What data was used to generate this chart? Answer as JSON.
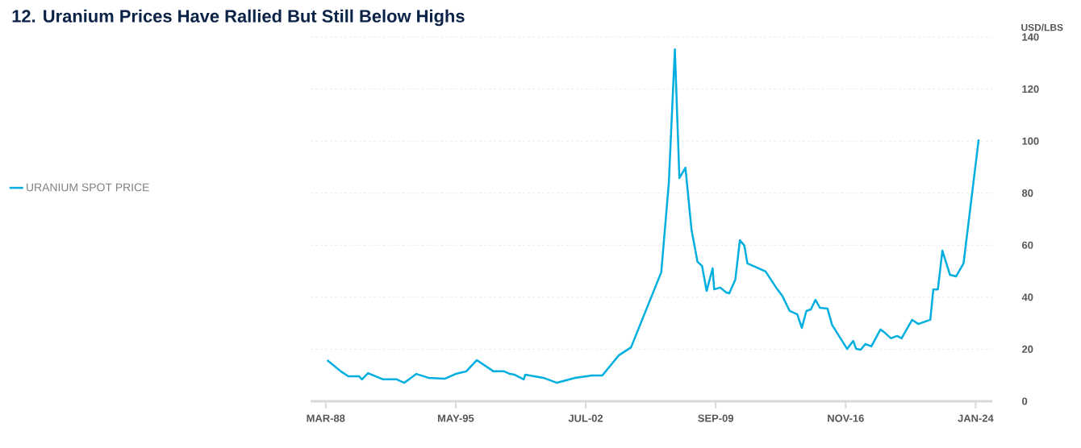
{
  "chart_data": {
    "type": "line",
    "title": "12. Uranium Prices Have Rallied But Still Below Highs",
    "ylabel": "USD/LBS",
    "x": [
      "1988-04",
      "1989-01",
      "1989-06",
      "1990-01",
      "1990-03",
      "1990-07",
      "1991-05",
      "1992-02",
      "1992-07",
      "1993-03",
      "1993-11",
      "1994-10",
      "1995-05",
      "1995-12",
      "1996-07",
      "1997-06",
      "1998-01",
      "1998-05",
      "1998-08",
      "1999-02",
      "1999-03",
      "2000-03",
      "2000-12",
      "2001-12",
      "2002-11",
      "2003-06",
      "2004-05",
      "2005-01",
      "2006-09",
      "2007-02",
      "2007-06",
      "2007-09",
      "2008-01",
      "2008-05",
      "2008-09",
      "2008-12",
      "2009-03",
      "2009-07",
      "2009-08",
      "2009-12",
      "2010-04",
      "2010-06",
      "2010-10",
      "2011-01",
      "2011-04",
      "2011-06",
      "2012-06",
      "2013-01",
      "2013-05",
      "2013-10",
      "2014-03",
      "2014-06",
      "2014-09",
      "2014-12",
      "2015-03",
      "2015-06",
      "2015-11",
      "2016-02",
      "2016-12",
      "2017-04",
      "2017-06",
      "2017-09",
      "2017-12",
      "2018-04",
      "2018-10",
      "2019-01",
      "2019-05",
      "2019-09",
      "2019-12",
      "2020-07",
      "2020-11",
      "2021-07",
      "2021-09",
      "2021-12",
      "2022-03",
      "2022-08",
      "2022-12",
      "2023-05",
      "2024-03"
    ],
    "series": [
      {
        "name": "URANIUM SPOT PRICE",
        "color": "#00aee0",
        "values": [
          15.8,
          11.5,
          9.6,
          9.6,
          8.4,
          10.8,
          8.4,
          8.4,
          7.1,
          10.5,
          9.0,
          8.7,
          10.5,
          11.5,
          15.8,
          11.5,
          11.5,
          10.5,
          10.2,
          8.4,
          10.2,
          9.0,
          7.1,
          9.0,
          9.9,
          9.9,
          17.7,
          20.7,
          49.6,
          83.9,
          135.3,
          85.8,
          89.8,
          66.0,
          53.6,
          52.0,
          42.4,
          51.1,
          43.0,
          43.7,
          41.8,
          41.5,
          46.8,
          61.9,
          59.8,
          53.0,
          49.9,
          43.7,
          40.6,
          34.7,
          33.4,
          28.2,
          34.7,
          35.3,
          39.0,
          35.9,
          35.6,
          29.4,
          20.1,
          23.2,
          20.1,
          19.8,
          22.0,
          21.1,
          27.6,
          26.3,
          24.2,
          25.1,
          24.2,
          31.3,
          29.7,
          31.3,
          43.0,
          43.0,
          57.9,
          48.6,
          48.0,
          53.0,
          100.6
        ]
      }
    ],
    "xlim": [
      "1987-05",
      "2024-12"
    ],
    "xticks": [
      {
        "value": "1988-03",
        "label": "MAR-88"
      },
      {
        "value": "1995-05",
        "label": "MAY-95"
      },
      {
        "value": "2002-07",
        "label": "JUL-02"
      },
      {
        "value": "2009-09",
        "label": "SEP-09"
      },
      {
        "value": "2016-11",
        "label": "NOV-16"
      },
      {
        "value": "2024-01",
        "label": "JAN-24"
      }
    ],
    "ylim": [
      0,
      140
    ],
    "yticks": [
      0,
      20,
      40,
      60,
      80,
      100,
      120,
      140
    ],
    "grid": "y",
    "legend": "left"
  }
}
